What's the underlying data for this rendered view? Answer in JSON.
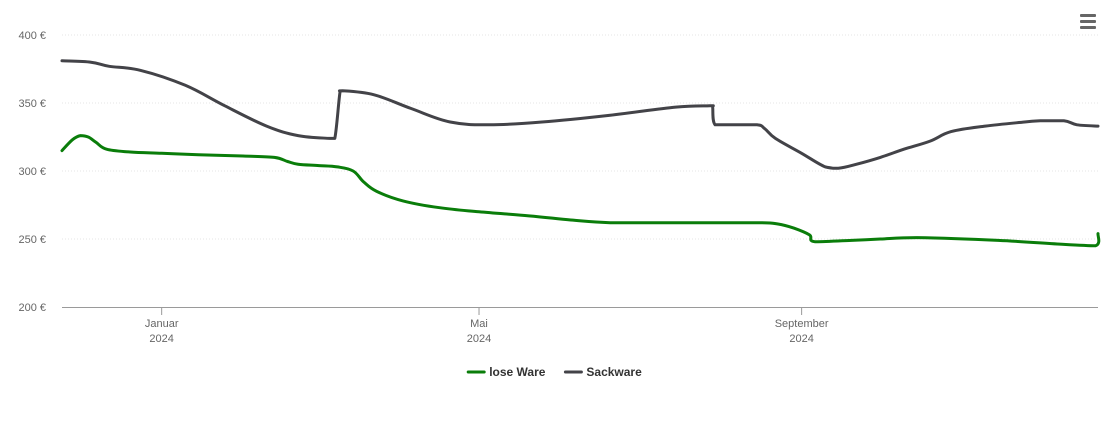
{
  "menu": {
    "icon": "hamburger-menu-icon"
  },
  "chart_data": {
    "type": "line",
    "title": "",
    "xlabel": "",
    "ylabel": "",
    "ylim": [
      200,
      400
    ],
    "grid": true,
    "legend_position": "bottom-center",
    "y_ticks": [
      {
        "value": 200,
        "label": "200 €"
      },
      {
        "value": 250,
        "label": "250 €"
      },
      {
        "value": 300,
        "label": "300 €"
      },
      {
        "value": 350,
        "label": "350 €"
      },
      {
        "value": 400,
        "label": "400 €"
      }
    ],
    "xlim": [
      "2023-11-24",
      "2024-12-23"
    ],
    "x_ticks": [
      {
        "date": "2024-01-01",
        "line1": "Januar",
        "line2": "2024"
      },
      {
        "date": "2024-05-01",
        "line1": "Mai",
        "line2": "2024"
      },
      {
        "date": "2024-09-01",
        "line1": "September",
        "line2": "2024"
      }
    ],
    "series": [
      {
        "name": "lose Ware",
        "color": "#0a7d0a",
        "points": [
          [
            "2023-11-24",
            315
          ],
          [
            "2023-11-28",
            323
          ],
          [
            "2023-12-01",
            326
          ],
          [
            "2023-12-04",
            325
          ],
          [
            "2023-12-07",
            321
          ],
          [
            "2023-12-11",
            316
          ],
          [
            "2023-12-20",
            314
          ],
          [
            "2024-01-01",
            313
          ],
          [
            "2024-01-15",
            312
          ],
          [
            "2024-02-01",
            311
          ],
          [
            "2024-02-13",
            310
          ],
          [
            "2024-02-18",
            307
          ],
          [
            "2024-02-22",
            305
          ],
          [
            "2024-03-01",
            304
          ],
          [
            "2024-03-08",
            303
          ],
          [
            "2024-03-14",
            300
          ],
          [
            "2024-03-18",
            292
          ],
          [
            "2024-03-23",
            285
          ],
          [
            "2024-04-02",
            278
          ],
          [
            "2024-04-16",
            273
          ],
          [
            "2024-05-01",
            270
          ],
          [
            "2024-05-20",
            267
          ],
          [
            "2024-06-05",
            264
          ],
          [
            "2024-06-20",
            262
          ],
          [
            "2024-07-15",
            262
          ],
          [
            "2024-08-15",
            262
          ],
          [
            "2024-08-23",
            261
          ],
          [
            "2024-08-29",
            258
          ],
          [
            "2024-09-04",
            253
          ],
          [
            "2024-09-06",
            248
          ],
          [
            "2024-09-20",
            249
          ],
          [
            "2024-10-01",
            250
          ],
          [
            "2024-10-15",
            251
          ],
          [
            "2024-11-15",
            249
          ],
          [
            "2024-12-10",
            246
          ],
          [
            "2024-12-22",
            245
          ],
          [
            "2024-12-23",
            254
          ]
        ]
      },
      {
        "name": "Sackware",
        "color": "#434348",
        "points": [
          [
            "2023-11-24",
            381
          ],
          [
            "2023-12-05",
            380
          ],
          [
            "2023-12-12",
            377
          ],
          [
            "2023-12-24",
            374
          ],
          [
            "2024-01-10",
            363
          ],
          [
            "2024-01-25",
            348
          ],
          [
            "2024-02-10",
            333
          ],
          [
            "2024-02-22",
            326
          ],
          [
            "2024-03-05",
            324
          ],
          [
            "2024-03-07",
            324
          ],
          [
            "2024-03-09",
            358
          ],
          [
            "2024-03-10",
            359
          ],
          [
            "2024-03-22",
            356
          ],
          [
            "2024-04-05",
            346
          ],
          [
            "2024-04-20",
            336
          ],
          [
            "2024-05-05",
            334
          ],
          [
            "2024-05-25",
            336
          ],
          [
            "2024-06-20",
            341
          ],
          [
            "2024-07-15",
            347
          ],
          [
            "2024-07-28",
            348
          ],
          [
            "2024-07-29",
            348
          ],
          [
            "2024-07-30",
            334
          ],
          [
            "2024-08-05",
            334
          ],
          [
            "2024-08-15",
            334
          ],
          [
            "2024-08-18",
            331
          ],
          [
            "2024-08-22",
            324
          ],
          [
            "2024-09-01",
            313
          ],
          [
            "2024-09-10",
            303
          ],
          [
            "2024-09-15",
            302
          ],
          [
            "2024-09-22",
            305
          ],
          [
            "2024-10-01",
            310
          ],
          [
            "2024-10-10",
            316
          ],
          [
            "2024-10-20",
            322
          ],
          [
            "2024-10-28",
            329
          ],
          [
            "2024-11-10",
            333
          ],
          [
            "2024-11-25",
            336
          ],
          [
            "2024-12-01",
            337
          ],
          [
            "2024-12-10",
            337
          ],
          [
            "2024-12-15",
            334
          ],
          [
            "2024-12-23",
            333
          ]
        ]
      }
    ]
  }
}
